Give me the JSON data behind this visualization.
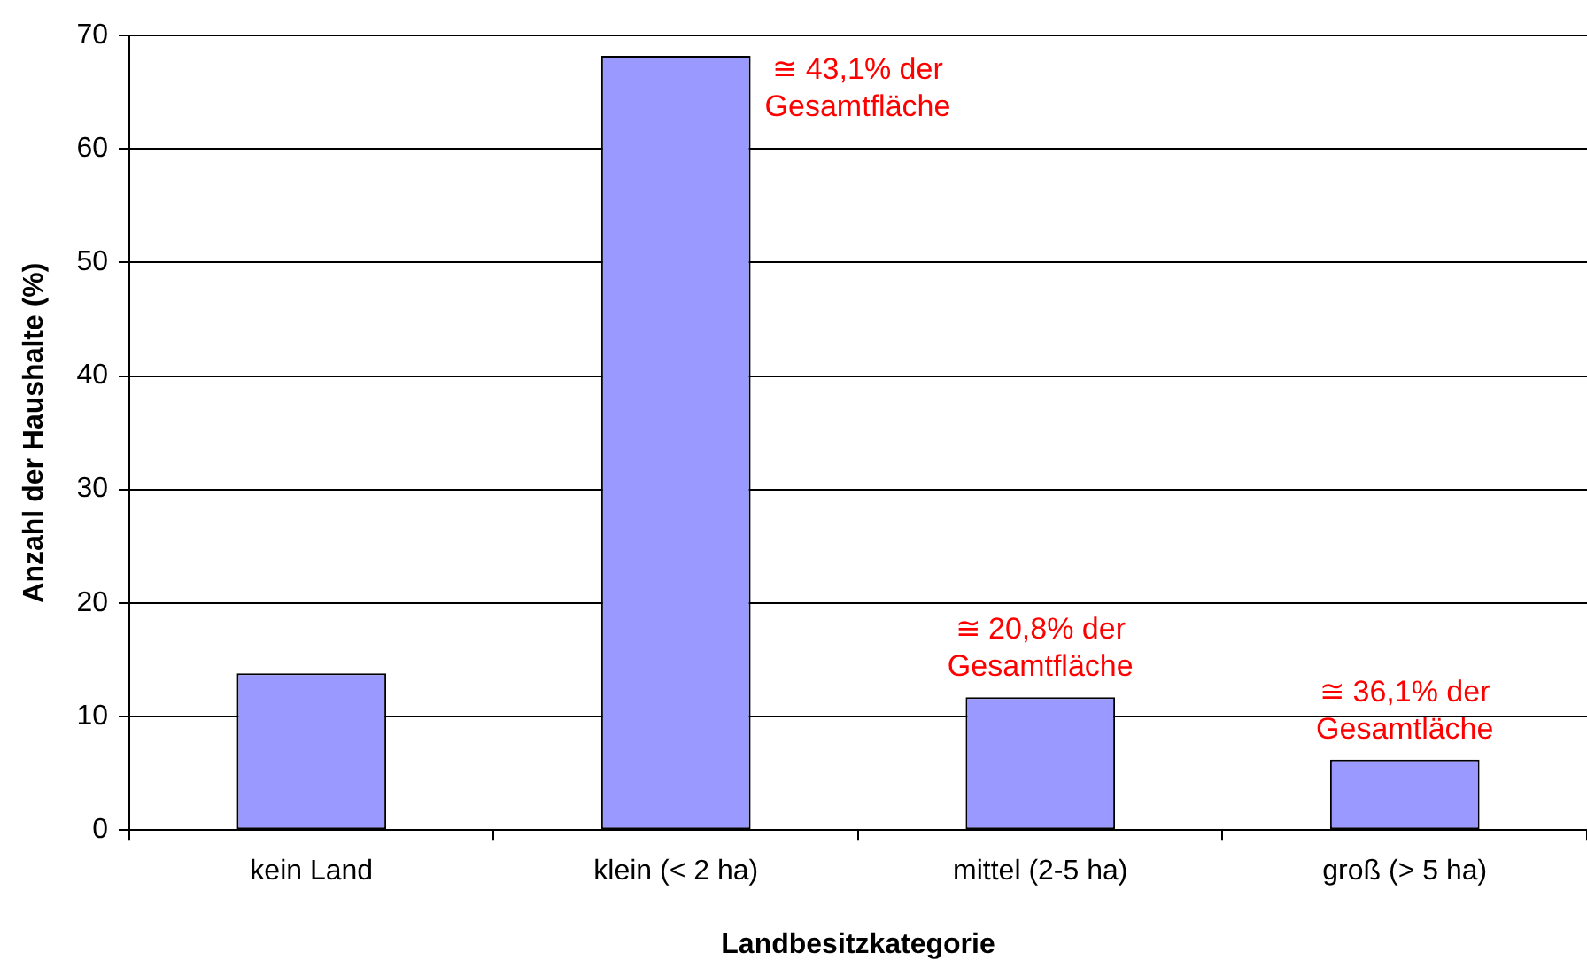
{
  "chart_data": {
    "type": "bar",
    "xlabel": "Landbesitzkategorie",
    "ylabel": "Anzahl der Haushalte (%)",
    "categories": [
      "kein Land",
      "klein (< 2 ha)",
      "mittel (2-5 ha)",
      "groß (> 5 ha)"
    ],
    "values": [
      13.8,
      68.2,
      11.7,
      6.2
    ],
    "color": "#9999ff",
    "ylim": [
      0,
      70
    ],
    "yticks": [
      0,
      10,
      20,
      30,
      40,
      50,
      60,
      70
    ],
    "grid": "y",
    "legend": false,
    "annotations": [
      {
        "text": "≅ 43,1% der\nGesamtfläche",
        "x": "klein (< 2 ha)",
        "y": 68.2
      },
      {
        "text": "≅ 20,8% der\nGesamtfläche",
        "x": "mittel (2-5 ha)",
        "y": 11.7
      },
      {
        "text": "≅ 36,1% der\nGesamtläche",
        "x": "groß (> 5 ha)",
        "y": 6.2
      }
    ]
  }
}
